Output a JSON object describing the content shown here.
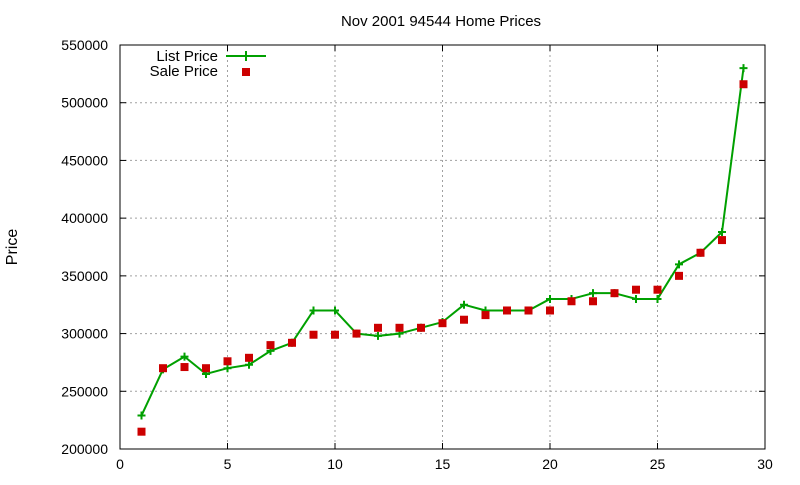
{
  "chart_data": {
    "type": "line",
    "title": "Nov 2001 94544 Home Prices",
    "xlabel": "",
    "ylabel": "Price",
    "xlim": [
      0,
      30
    ],
    "ylim": [
      200000,
      550000
    ],
    "xticks": [
      0,
      5,
      10,
      15,
      20,
      25,
      30
    ],
    "yticks": [
      200000,
      250000,
      300000,
      350000,
      400000,
      450000,
      500000,
      550000
    ],
    "grid": true,
    "legend_position": "top-left",
    "series": [
      {
        "name": "List Price",
        "style": "line-points",
        "color": "#00a000",
        "x": [
          1,
          2,
          3,
          4,
          5,
          6,
          7,
          8,
          9,
          10,
          11,
          12,
          13,
          14,
          15,
          16,
          17,
          18,
          19,
          20,
          21,
          22,
          23,
          24,
          25,
          26,
          27,
          28,
          29
        ],
        "y": [
          229000,
          269000,
          280000,
          265000,
          270000,
          273000,
          285000,
          292000,
          320000,
          320000,
          300000,
          298000,
          300000,
          305000,
          310000,
          325000,
          320000,
          320000,
          320000,
          330000,
          330000,
          335000,
          335000,
          330000,
          330000,
          360000,
          370000,
          388000,
          530000
        ]
      },
      {
        "name": "Sale Price",
        "style": "points",
        "color": "#cc0000",
        "x": [
          1,
          2,
          3,
          4,
          5,
          6,
          7,
          8,
          9,
          10,
          11,
          12,
          13,
          14,
          15,
          16,
          17,
          18,
          19,
          20,
          21,
          22,
          23,
          24,
          25,
          26,
          27,
          28,
          29
        ],
        "y": [
          215000,
          270000,
          271000,
          270000,
          276000,
          279000,
          290000,
          292000,
          299000,
          299000,
          300000,
          305000,
          305000,
          305000,
          309000,
          312000,
          316000,
          320000,
          320000,
          320000,
          328000,
          328000,
          335000,
          338000,
          338000,
          350000,
          370000,
          381000,
          516000
        ]
      }
    ]
  }
}
